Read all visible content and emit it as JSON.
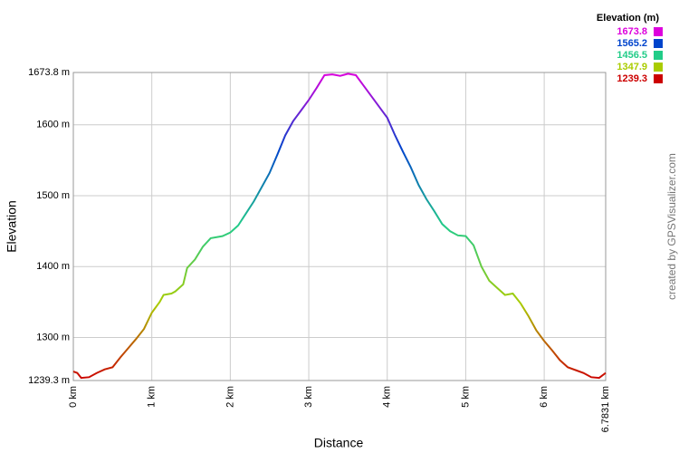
{
  "chart_data": {
    "type": "line",
    "xlabel": "Distance",
    "ylabel": "Elevation",
    "watermark": "created by GPSVisualizer.com",
    "legend": {
      "title": "Elevation (m)",
      "items": [
        {
          "value": 1673.8,
          "color": "#dd00dd"
        },
        {
          "value": 1565.2,
          "color": "#0044cc"
        },
        {
          "value": 1456.5,
          "color": "#22cc88"
        },
        {
          "value": 1347.9,
          "color": "#aacc00"
        },
        {
          "value": 1239.3,
          "color": "#cc0000"
        }
      ]
    },
    "x": [
      0,
      0.05,
      0.1,
      0.2,
      0.3,
      0.4,
      0.5,
      0.6,
      0.7,
      0.8,
      0.9,
      1.0,
      1.1,
      1.15,
      1.25,
      1.3,
      1.4,
      1.45,
      1.55,
      1.65,
      1.75,
      1.9,
      2.0,
      2.1,
      2.2,
      2.3,
      2.4,
      2.5,
      2.6,
      2.7,
      2.8,
      2.9,
      3.0,
      3.1,
      3.2,
      3.3,
      3.4,
      3.5,
      3.6,
      3.7,
      3.8,
      3.9,
      4.0,
      4.1,
      4.2,
      4.3,
      4.4,
      4.5,
      4.6,
      4.7,
      4.8,
      4.9,
      5.0,
      5.1,
      5.2,
      5.3,
      5.4,
      5.5,
      5.6,
      5.7,
      5.8,
      5.9,
      6.0,
      6.1,
      6.2,
      6.3,
      6.4,
      6.5,
      6.6,
      6.7,
      6.7831
    ],
    "series": [
      {
        "values": [
          1252,
          1250,
          1243,
          1244,
          1250,
          1255,
          1258,
          1272,
          1285,
          1298,
          1312,
          1335,
          1350,
          1360,
          1362,
          1365,
          1375,
          1398,
          1410,
          1428,
          1440,
          1443,
          1448,
          1458,
          1475,
          1492,
          1512,
          1532,
          1558,
          1585,
          1605,
          1620,
          1635,
          1652,
          1670,
          1671,
          1669,
          1672,
          1670,
          1655,
          1640,
          1625,
          1610,
          1585,
          1562,
          1540,
          1515,
          1495,
          1478,
          1460,
          1450,
          1444,
          1443,
          1430,
          1400,
          1380,
          1370,
          1360,
          1362,
          1348,
          1330,
          1310,
          1295,
          1282,
          1268,
          1258,
          1254,
          1250,
          1244,
          1243,
          1250
        ]
      }
    ],
    "xlim": [
      0,
      6.7831
    ],
    "ylim": [
      1239.3,
      1673.8
    ],
    "xticks": [
      {
        "value": 0,
        "label": "0 km"
      },
      {
        "value": 1,
        "label": "1 km"
      },
      {
        "value": 2,
        "label": "2 km"
      },
      {
        "value": 3,
        "label": "3 km"
      },
      {
        "value": 4,
        "label": "4 km"
      },
      {
        "value": 5,
        "label": "5 km"
      },
      {
        "value": 6,
        "label": "6 km"
      },
      {
        "value": 6.7831,
        "label": "6.7831 km"
      }
    ],
    "yticks": [
      {
        "value": 1239.3,
        "label": "1239.3 m"
      },
      {
        "value": 1300,
        "label": "1300 m"
      },
      {
        "value": 1400,
        "label": "1400 m"
      },
      {
        "value": 1500,
        "label": "1500 m"
      },
      {
        "value": 1600,
        "label": "1600 m"
      },
      {
        "value": 1673.8,
        "label": "1673.8 m"
      }
    ],
    "grid": true
  }
}
